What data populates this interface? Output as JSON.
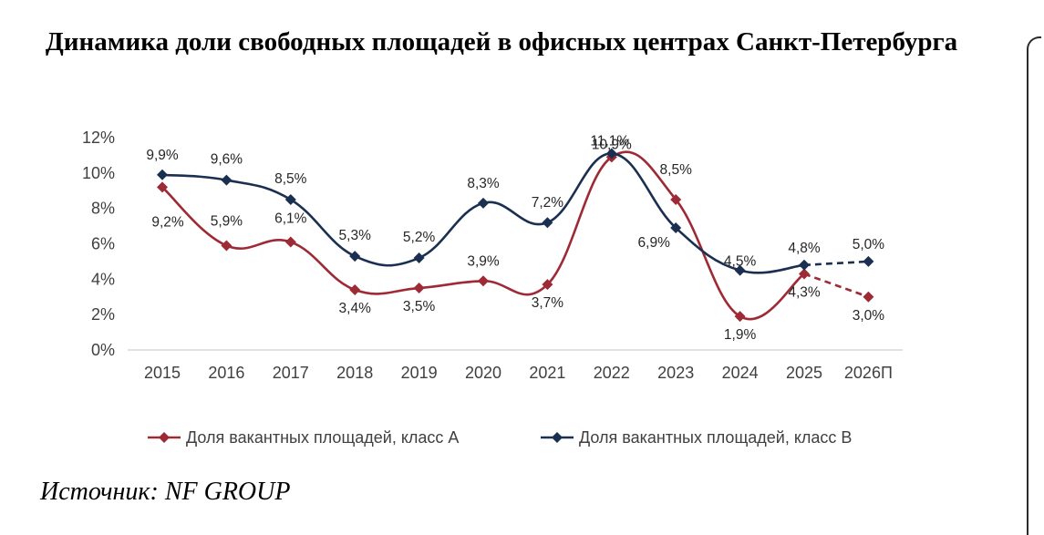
{
  "title": "Динамика доли свободных площадей в офисных центрах Санкт-Петербурга",
  "source": "Источник: NF GROUP",
  "chart_data": {
    "type": "line",
    "categories": [
      "2015",
      "2016",
      "2017",
      "2018",
      "2019",
      "2020",
      "2021",
      "2022",
      "2023",
      "2024",
      "2025",
      "2026П"
    ],
    "ylim": [
      0,
      12
    ],
    "yticks": [
      0,
      2,
      4,
      6,
      8,
      10,
      12
    ],
    "ytick_labels": [
      "0%",
      "2%",
      "4%",
      "6%",
      "8%",
      "10%",
      "12%"
    ],
    "grid": false,
    "legend_position": "bottom",
    "forecast_from_index": 10,
    "series": [
      {
        "name": "Доля вакантных площадей, класс А",
        "color": "#9e2a35",
        "marker": "diamond",
        "values": [
          9.2,
          5.9,
          6.1,
          3.4,
          3.5,
          3.9,
          3.7,
          10.9,
          8.5,
          1.9,
          4.3,
          3.0
        ],
        "labels": [
          "9,2%",
          "5,9%",
          "6,1%",
          "3,4%",
          "3,5%",
          "3,9%",
          "3,7%",
          "10,9%",
          "8,5%",
          "1,9%",
          "4,3%",
          "3,0%"
        ]
      },
      {
        "name": "Доля вакантных площадей, класс В",
        "color": "#1b3050",
        "marker": "diamond",
        "values": [
          9.9,
          9.6,
          8.5,
          5.3,
          5.2,
          8.3,
          7.2,
          11.1,
          6.9,
          4.5,
          4.8,
          5.0
        ],
        "labels": [
          "9,9%",
          "9,6%",
          "8,5%",
          "5,3%",
          "5,2%",
          "8,3%",
          "7,2%",
          "11,1%",
          "6,9%",
          "4,5%",
          "4,8%",
          "5,0%"
        ]
      }
    ]
  }
}
